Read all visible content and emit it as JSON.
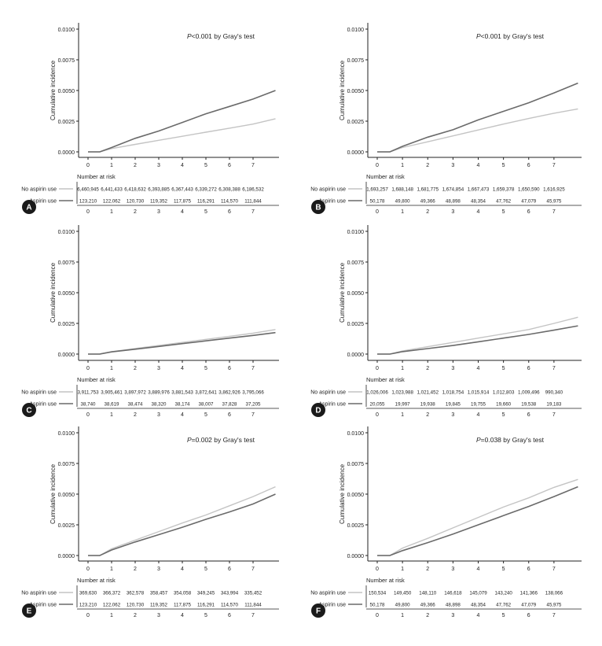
{
  "colors": {
    "no_aspirin": "#c4c4c4",
    "aspirin": "#6a6a6a",
    "axis": "#222222"
  },
  "chart_data": [
    {
      "panel_label": "A",
      "type": "line",
      "annotation_prefix": "P",
      "annotation_rest": "<0.001 by Gray's test",
      "ylabel": "Cumulative incidence",
      "ylim": [
        0,
        0.01
      ],
      "y_ticks": [
        "0.0000",
        "0.0025",
        "0.0050",
        "0.0075",
        "0.0100"
      ],
      "xlim": [
        0,
        8
      ],
      "x_ticks": [
        "0",
        "1",
        "2",
        "3",
        "4",
        "5",
        "6",
        "7"
      ],
      "risk_table_title": "Number at risk",
      "series": [
        {
          "name": "No aspirin use",
          "color": "#c4c4c4",
          "x": [
            0.5,
            1,
            2,
            3,
            4,
            5,
            6,
            7,
            7.95
          ],
          "y": [
            0,
            0.00027,
            0.00061,
            0.00094,
            0.00127,
            0.0016,
            0.00193,
            0.00226,
            0.0027
          ],
          "at_risk": [
            "6,460,945",
            "6,441,433",
            "6,418,632",
            "6,393,885",
            "6,367,443",
            "6,339,272",
            "6,308,388",
            "6,186,532"
          ]
        },
        {
          "name": "Aspirin use",
          "color": "#6a6a6a",
          "x": [
            0.5,
            1,
            2,
            3,
            4,
            5,
            6,
            7,
            7.95
          ],
          "y": [
            0,
            0.00035,
            0.0011,
            0.0017,
            0.0024,
            0.0031,
            0.0037,
            0.0043,
            0.005
          ],
          "at_risk": [
            "123,210",
            "122,062",
            "120,730",
            "119,352",
            "117,875",
            "116,291",
            "114,570",
            "111,844"
          ]
        }
      ]
    },
    {
      "panel_label": "B",
      "type": "line",
      "annotation_prefix": "P",
      "annotation_rest": "<0.001 by Gray's test",
      "ylabel": "Cumulative incidence",
      "ylim": [
        0,
        0.01
      ],
      "y_ticks": [
        "0.0000",
        "0.0025",
        "0.0050",
        "0.0075",
        "0.0100"
      ],
      "xlim": [
        0,
        8
      ],
      "x_ticks": [
        "0",
        "1",
        "2",
        "3",
        "4",
        "5",
        "6",
        "7"
      ],
      "risk_table_title": "Number at risk",
      "series": [
        {
          "name": "No aspirin use",
          "color": "#c4c4c4",
          "x": [
            0.5,
            1,
            2,
            3,
            4,
            5,
            6,
            7,
            7.95
          ],
          "y": [
            0,
            0.00035,
            0.00082,
            0.0013,
            0.00178,
            0.00226,
            0.00272,
            0.00315,
            0.0035
          ],
          "at_risk": [
            "1,693,257",
            "1,688,148",
            "1,681,775",
            "1,674,854",
            "1,667,473",
            "1,659,378",
            "1,650,590",
            "1,616,925"
          ]
        },
        {
          "name": "Aspirin use",
          "color": "#6a6a6a",
          "x": [
            0.5,
            1,
            2,
            3,
            4,
            5,
            6,
            7,
            7.95
          ],
          "y": [
            0,
            0.00045,
            0.0012,
            0.0018,
            0.0026,
            0.0033,
            0.004,
            0.0048,
            0.0056
          ],
          "at_risk": [
            "50,178",
            "49,800",
            "49,366",
            "48,898",
            "48,354",
            "47,762",
            "47,079",
            "45,975"
          ]
        }
      ]
    },
    {
      "panel_label": "C",
      "type": "line",
      "annotation_prefix": "",
      "annotation_rest": "",
      "ylabel": "Cumulative incidence",
      "ylim": [
        0,
        0.01
      ],
      "y_ticks": [
        "0.0000",
        "0.0025",
        "0.0050",
        "0.0075",
        "0.0100"
      ],
      "xlim": [
        0,
        8
      ],
      "x_ticks": [
        "0",
        "1",
        "2",
        "3",
        "4",
        "5",
        "6",
        "7"
      ],
      "risk_table_title": "Number at risk",
      "series": [
        {
          "name": "No aspirin use",
          "color": "#c4c4c4",
          "x": [
            0.5,
            1,
            2,
            3,
            4,
            5,
            6,
            7,
            7.95
          ],
          "y": [
            0,
            0.0002,
            0.00045,
            0.0007,
            0.00095,
            0.0012,
            0.00145,
            0.0017,
            0.002
          ],
          "at_risk": [
            "3,911,753",
            "3,905,461",
            "3,897,972",
            "3,889,976",
            "3,881,543",
            "3,872,641",
            "3,862,926",
            "3,795,066"
          ]
        },
        {
          "name": "Aspirin use",
          "color": "#6a6a6a",
          "x": [
            0.5,
            1,
            2,
            3,
            4,
            5,
            6,
            7,
            7.95
          ],
          "y": [
            0,
            0.00018,
            0.0004,
            0.00062,
            0.00085,
            0.00108,
            0.0013,
            0.00152,
            0.00175
          ],
          "at_risk": [
            "38,740",
            "38,619",
            "38,474",
            "38,320",
            "38,174",
            "38,007",
            "37,828",
            "37,205"
          ]
        }
      ]
    },
    {
      "panel_label": "D",
      "type": "line",
      "annotation_prefix": "",
      "annotation_rest": "",
      "ylabel": "Cumulative incidence",
      "ylim": [
        0,
        0.01
      ],
      "y_ticks": [
        "0.0000",
        "0.0025",
        "0.0050",
        "0.0075",
        "0.0100"
      ],
      "xlim": [
        0,
        8
      ],
      "x_ticks": [
        "0",
        "1",
        "2",
        "3",
        "4",
        "5",
        "6",
        "7"
      ],
      "risk_table_title": "Number at risk",
      "series": [
        {
          "name": "No aspirin use",
          "color": "#c4c4c4",
          "x": [
            0.5,
            1,
            2,
            3,
            4,
            5,
            6,
            7,
            7.95
          ],
          "y": [
            0,
            0.00025,
            0.0006,
            0.00095,
            0.0013,
            0.00165,
            0.002,
            0.0025,
            0.003
          ],
          "at_risk": [
            "1,026,006",
            "1,023,988",
            "1,021,452",
            "1,018,754",
            "1,015,914",
            "1,012,803",
            "1,009,496",
            "990,340"
          ]
        },
        {
          "name": "Aspirin use",
          "color": "#6a6a6a",
          "x": [
            0.5,
            1,
            2,
            3,
            4,
            5,
            6,
            7,
            7.95
          ],
          "y": [
            0,
            0.0002,
            0.00045,
            0.0007,
            0.001,
            0.0013,
            0.0016,
            0.00195,
            0.0023
          ],
          "at_risk": [
            "20,055",
            "19,997",
            "19,938",
            "19,845",
            "19,755",
            "19,660",
            "19,538",
            "19,183"
          ]
        }
      ]
    },
    {
      "panel_label": "E",
      "type": "line",
      "annotation_prefix": "P",
      "annotation_rest": "=0.002 by Gray's test",
      "ylabel": "Cumulative incidence",
      "ylim": [
        0,
        0.01
      ],
      "y_ticks": [
        "0.0000",
        "0.0025",
        "0.0050",
        "0.0075",
        "0.0100"
      ],
      "xlim": [
        0,
        8
      ],
      "x_ticks": [
        "0",
        "1",
        "2",
        "3",
        "4",
        "5",
        "6",
        "7"
      ],
      "risk_table_title": "Number at risk",
      "series": [
        {
          "name": "No aspirin use",
          "color": "#c4c4c4",
          "x": [
            0.5,
            1,
            2,
            3,
            4,
            5,
            6,
            7,
            7.95
          ],
          "y": [
            0,
            0.00055,
            0.00125,
            0.00195,
            0.00265,
            0.0033,
            0.00405,
            0.0048,
            0.0056
          ],
          "at_risk": [
            "369,630",
            "366,372",
            "362,578",
            "358,457",
            "354,058",
            "349,245",
            "343,994",
            "335,452"
          ]
        },
        {
          "name": "Aspirin use",
          "color": "#6a6a6a",
          "x": [
            0.5,
            1,
            2,
            3,
            4,
            5,
            6,
            7,
            7.95
          ],
          "y": [
            0,
            0.00045,
            0.0011,
            0.0017,
            0.0023,
            0.00295,
            0.00355,
            0.0042,
            0.005
          ],
          "at_risk": [
            "123,210",
            "122,062",
            "120,730",
            "119,352",
            "117,875",
            "116,291",
            "114,570",
            "111,844"
          ]
        }
      ]
    },
    {
      "panel_label": "F",
      "type": "line",
      "annotation_prefix": "P",
      "annotation_rest": "=0.038 by Gray's test",
      "ylabel": "Cumulative incidence",
      "ylim": [
        0,
        0.01
      ],
      "y_ticks": [
        "0.0000",
        "0.0025",
        "0.0050",
        "0.0075",
        "0.0100"
      ],
      "xlim": [
        0,
        8
      ],
      "x_ticks": [
        "0",
        "1",
        "2",
        "3",
        "4",
        "5",
        "6",
        "7"
      ],
      "risk_table_title": "Number at risk",
      "series": [
        {
          "name": "No aspirin use",
          "color": "#c4c4c4",
          "x": [
            0.5,
            1,
            2,
            3,
            4,
            5,
            6,
            7,
            7.95
          ],
          "y": [
            0,
            0.0006,
            0.0014,
            0.00225,
            0.0031,
            0.00395,
            0.0047,
            0.00555,
            0.0062
          ],
          "at_risk": [
            "150,534",
            "149,450",
            "148,110",
            "146,618",
            "145,079",
            "143,240",
            "141,366",
            "138,066"
          ]
        },
        {
          "name": "Aspirin use",
          "color": "#6a6a6a",
          "x": [
            0.5,
            1,
            2,
            3,
            4,
            5,
            6,
            7,
            7.95
          ],
          "y": [
            0,
            0.0004,
            0.00105,
            0.00175,
            0.0025,
            0.00325,
            0.004,
            0.0048,
            0.0056
          ],
          "at_risk": [
            "50,178",
            "49,800",
            "49,366",
            "48,898",
            "48,354",
            "47,762",
            "47,079",
            "45,975"
          ]
        }
      ]
    }
  ]
}
